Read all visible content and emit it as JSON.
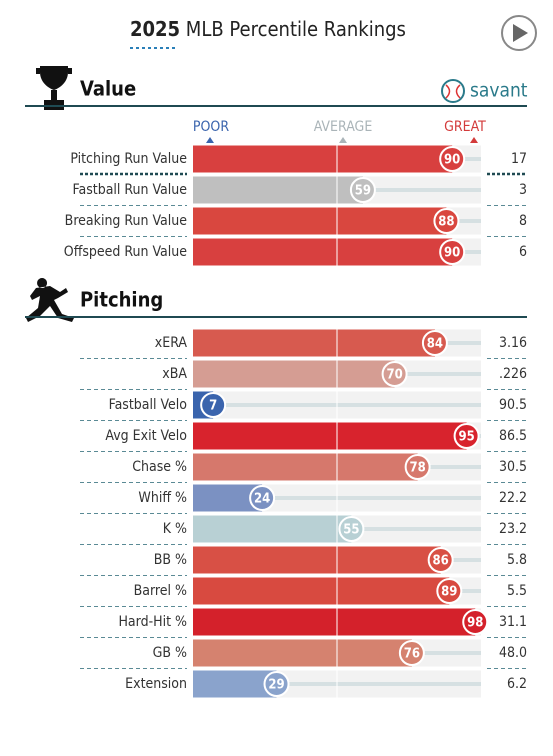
{
  "header": {
    "year": "2025",
    "title": "MLB Percentile Rankings",
    "brand": "savant"
  },
  "chart_data": [
    {
      "type": "bar",
      "title": "Value",
      "xlim": [
        0,
        100
      ],
      "xticks": [
        {
          "value": 0,
          "label": "POOR"
        },
        {
          "value": 50,
          "label": "AVERAGE"
        },
        {
          "value": 100,
          "label": "GREAT"
        }
      ],
      "categories": [
        "Pitching Run Value",
        "Fastball Run Value",
        "Breaking Run Value",
        "Offspeed Run Value"
      ],
      "values": [
        90,
        59,
        88,
        90
      ],
      "colors": [
        "#d8403f",
        "#bfbfbf",
        "#d9473f",
        "#d8403f"
      ],
      "stat_labels": [
        "17",
        "3",
        "8",
        "6"
      ]
    },
    {
      "type": "bar",
      "title": "Pitching",
      "xlim": [
        0,
        100
      ],
      "categories": [
        "xERA",
        "xBA",
        "Fastball Velo",
        "Avg Exit Velo",
        "Chase %",
        "Whiff %",
        "K %",
        "BB %",
        "Barrel %",
        "Hard-Hit %",
        "GB %",
        "Extension"
      ],
      "values": [
        84,
        70,
        7,
        95,
        78,
        24,
        55,
        86,
        89,
        98,
        76,
        29
      ],
      "colors": [
        "#d75a4f",
        "#d59d93",
        "#3a64ad",
        "#d8232d",
        "#d6786c",
        "#7b91c2",
        "#b8d0d4",
        "#d85045",
        "#d84a40",
        "#d4212b",
        "#d5826f",
        "#8aa3cc"
      ],
      "stat_labels": [
        "3.16",
        ".226",
        "90.5",
        "86.5",
        "30.5",
        "22.2",
        "23.2",
        "5.8",
        "5.5",
        "31.1",
        "48.0",
        "6.2"
      ]
    }
  ]
}
